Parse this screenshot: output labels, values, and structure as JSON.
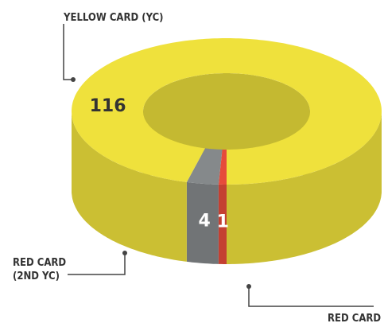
{
  "chart_data": {
    "type": "donut3d",
    "categories": [
      "YELLOW CARD (YC)",
      "RED CARD (2ND YC)",
      "RED CARD"
    ],
    "values": [
      116,
      4,
      1
    ],
    "colors": [
      "#efe13c",
      "#85898b",
      "#e64b3b"
    ]
  }
}
